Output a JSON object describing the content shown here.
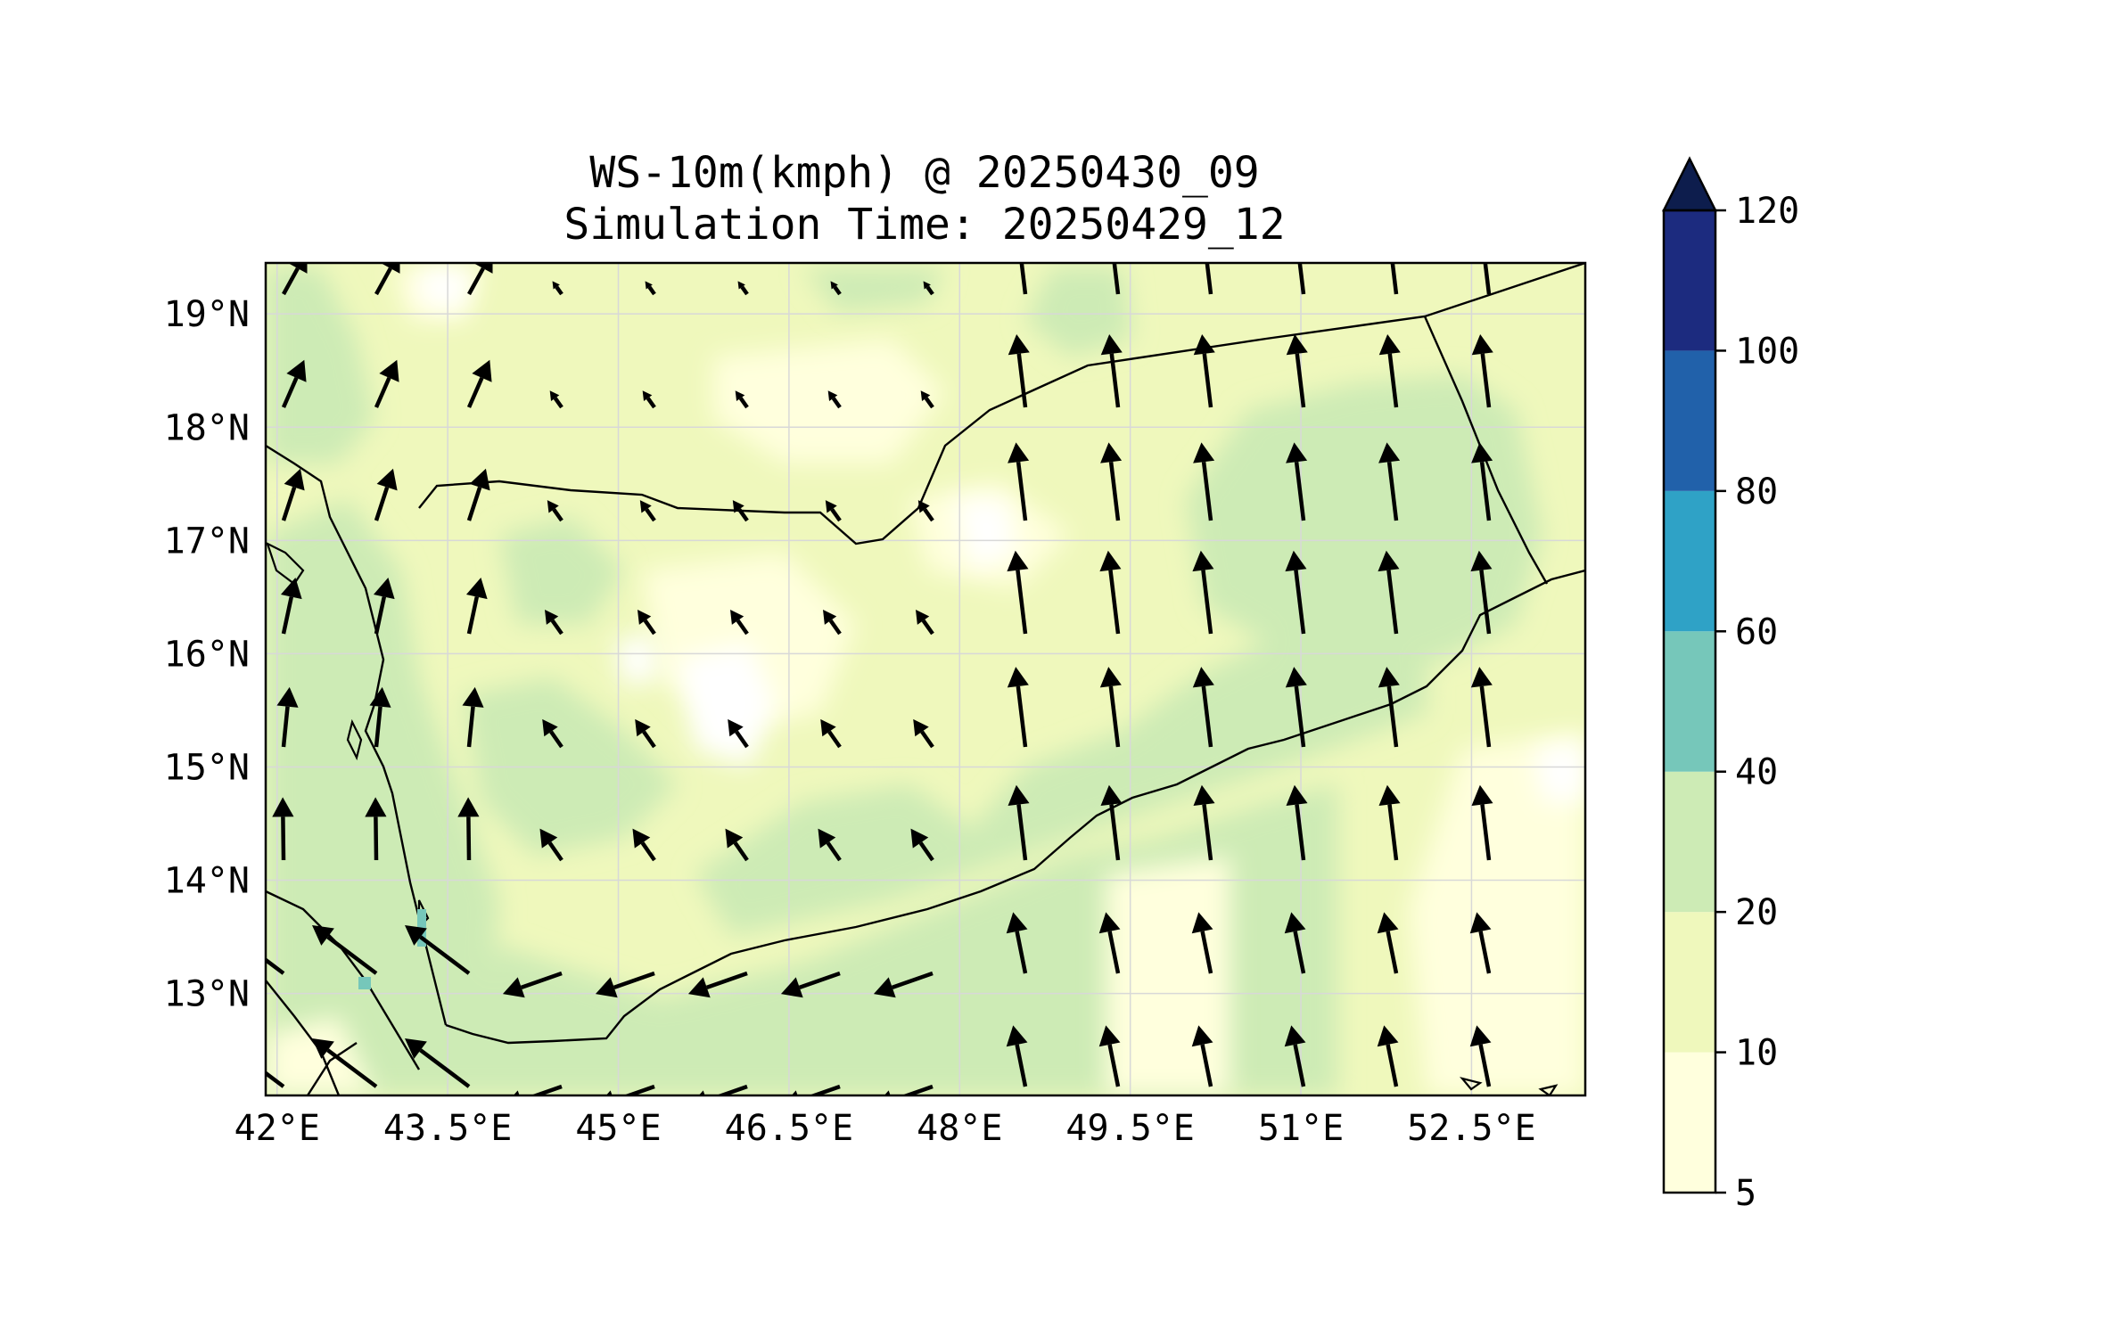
{
  "title": {
    "line1": "WS-10m(kmph) @ 20250430_09",
    "line2": "Simulation Time: 20250429_12"
  },
  "map": {
    "variable": "10 m wind speed (kmph) with wind vectors",
    "lon_range": [
      41.9,
      53.5
    ],
    "lat_range": [
      12.1,
      19.45
    ],
    "lon_ticks": [
      {
        "value": 42.0,
        "label": "42°E"
      },
      {
        "value": 43.5,
        "label": "43.5°E"
      },
      {
        "value": 45.0,
        "label": "45°E"
      },
      {
        "value": 46.5,
        "label": "46.5°E"
      },
      {
        "value": 48.0,
        "label": "48°E"
      },
      {
        "value": 49.5,
        "label": "49.5°E"
      },
      {
        "value": 51.0,
        "label": "51°E"
      },
      {
        "value": 52.5,
        "label": "52.5°E"
      }
    ],
    "lat_ticks": [
      {
        "value": 19,
        "label": "19°N"
      },
      {
        "value": 18,
        "label": "18°N"
      },
      {
        "value": 17,
        "label": "17°N"
      },
      {
        "value": 16,
        "label": "16°N"
      },
      {
        "value": 15,
        "label": "15°N"
      },
      {
        "value": 14,
        "label": "14°N"
      },
      {
        "value": 13,
        "label": "13°N"
      }
    ],
    "grid": true
  },
  "colorbar": {
    "levels": [
      5,
      10,
      20,
      40,
      60,
      80,
      100,
      120
    ],
    "labels": [
      "5",
      "10",
      "20",
      "40",
      "60",
      "80",
      "100",
      "120"
    ],
    "colors": [
      "#ffffdd",
      "#eff8bc",
      "#cdebb5",
      "#76c7ba",
      "#2fa2c6",
      "#2161aa",
      "#1c2b7f"
    ],
    "extend_color": "#0d1d4d",
    "extend": "max"
  },
  "colors": {
    "land_low": "#ffffdd",
    "land_mid": "#eff8bc",
    "land_high": "#cdebb5",
    "sea": "#cdebb5",
    "coast": "#000000",
    "grid": "#d8d8d8"
  }
}
